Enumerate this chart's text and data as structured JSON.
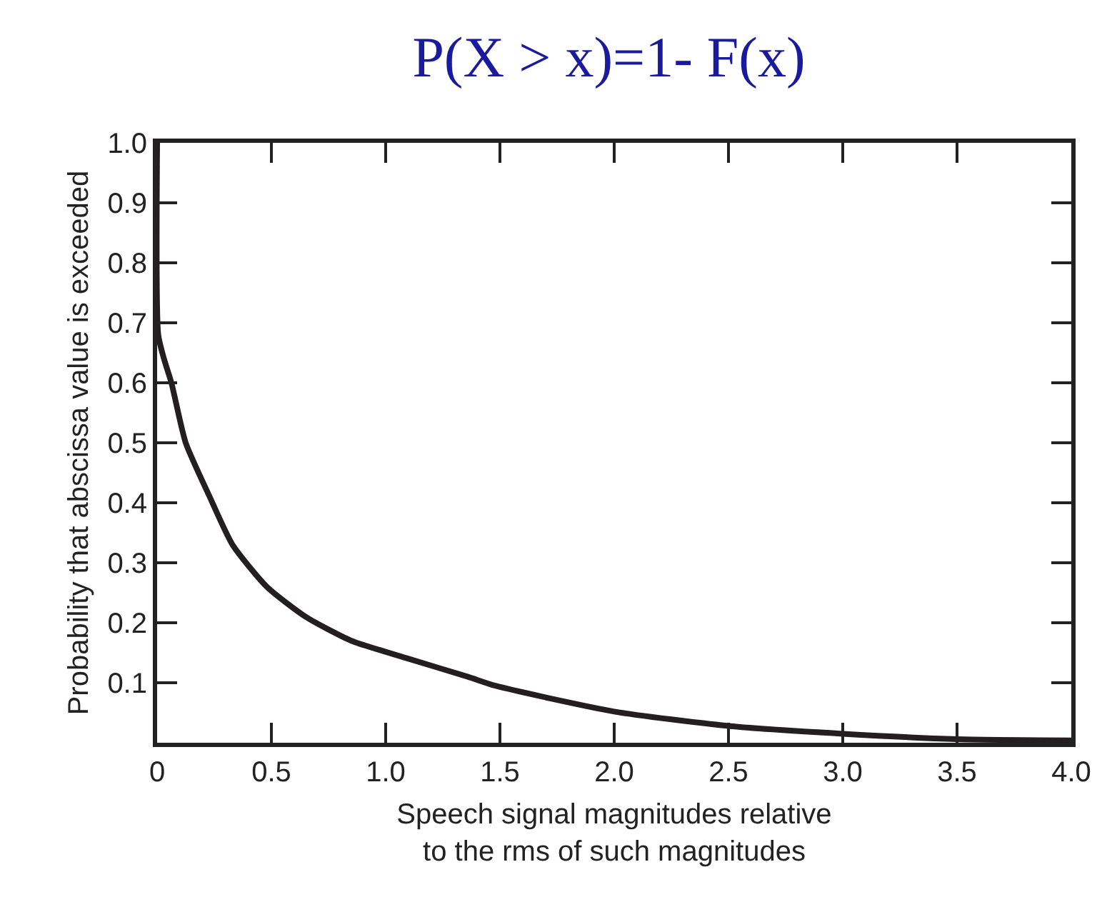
{
  "chart_data": {
    "type": "line",
    "title": "P(X > x)=1- F(x)",
    "xlabel": "Speech signal magnitudes relative\nto the rms of such magnitudes",
    "ylabel": "Probability that abscissa value is exceeded",
    "x": [
      0,
      0.005,
      0.03,
      0.0625,
      0.125,
      0.23,
      0.33,
      0.48,
      0.65,
      0.85,
      1.1,
      1.36,
      1.48,
      2.0,
      2.5,
      3.0,
      3.5,
      4.0
    ],
    "series": [
      {
        "color": "#231f20",
        "values": [
          1.0,
          0.68,
          0.64,
          0.6,
          0.5,
          0.41,
          0.33,
          0.26,
          0.21,
          0.17,
          0.14,
          0.11,
          0.095,
          0.052,
          0.028,
          0.015,
          0.006,
          0.004
        ]
      }
    ],
    "xlim": [
      0,
      4.0
    ],
    "ylim": [
      0,
      1.0
    ],
    "xticks": [
      {
        "value": 0,
        "label": "0"
      },
      0.5,
      {
        "value": 1,
        "label": "1.0"
      },
      1.5,
      {
        "value": 2,
        "label": "2.0"
      },
      2.5,
      {
        "value": 3,
        "label": "3.0"
      },
      3.5,
      {
        "value": 4,
        "label": "4.0"
      }
    ],
    "yticks": [
      {
        "value": 0.1,
        "label": "0.1"
      },
      0.2,
      0.3,
      0.4,
      0.5,
      0.6,
      0.7,
      0.8,
      0.9,
      {
        "value": 1,
        "label": "1.0"
      }
    ],
    "grid": false,
    "marker": "none",
    "line_style": "solid"
  }
}
